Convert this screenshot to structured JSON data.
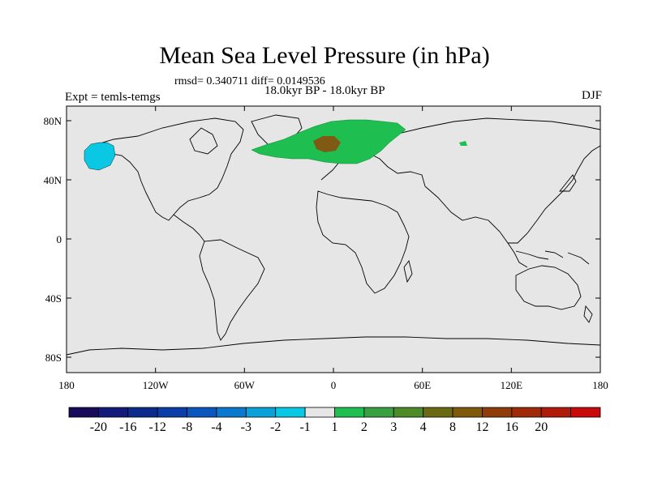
{
  "title": "Mean Sea Level Pressure (in hPa)",
  "stats": "rmsd= 0.340711 diff= 0.0149536",
  "period": "18.0kyr BP - 18.0kyr BP",
  "left_label": "Expt = temls-temgs",
  "right_label": "DJF",
  "lat_ticks": [
    "80N",
    "40N",
    "0",
    "40S",
    "80S"
  ],
  "lon_ticks": [
    "180",
    "120W",
    "60W",
    "0",
    "60E",
    "120E",
    "180"
  ],
  "colorbar": {
    "colors": [
      "#1a0a5c",
      "#141a7a",
      "#0c2c8c",
      "#0a3ea6",
      "#0a56bd",
      "#0a78cc",
      "#0aa0d8",
      "#0ac8e4",
      "#e6e6e6",
      "#1ebe50",
      "#38a040",
      "#4e8a28",
      "#6a6a14",
      "#7e5a0a",
      "#903c0a",
      "#9e2a0a",
      "#b01a0a",
      "#c80a0a"
    ],
    "labels": [
      "-20",
      "-16",
      "-12",
      "-8",
      "-4",
      "-3",
      "-2",
      "-1",
      "1",
      "2",
      "3",
      "4",
      "8",
      "12",
      "16",
      "20"
    ]
  },
  "colors": {
    "background": "#e6e6e6",
    "positive": "#1ebe50",
    "strong_positive": "#7e5a14",
    "negative": "#0ac8e4"
  }
}
